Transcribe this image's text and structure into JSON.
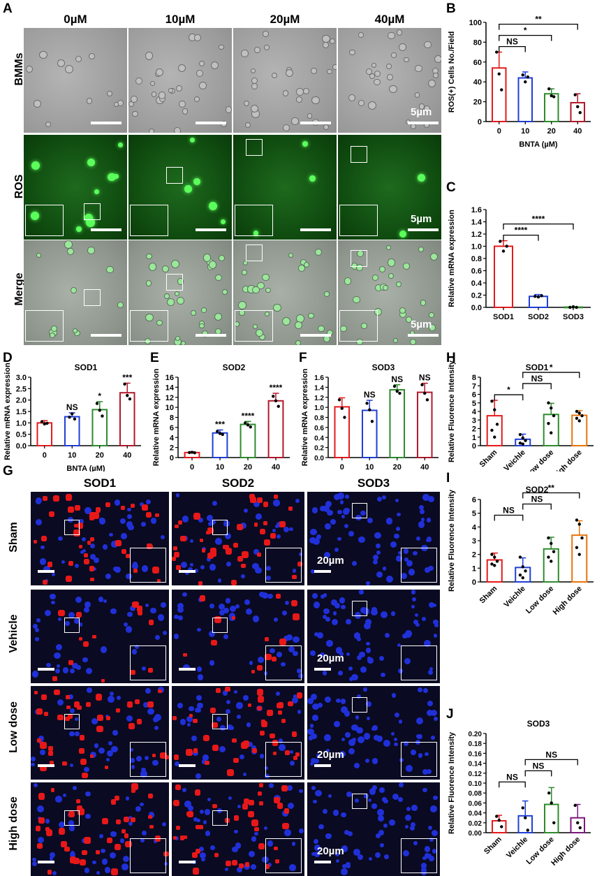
{
  "panel_labels": {
    "A": "A",
    "B": "B",
    "C": "C",
    "D": "D",
    "E": "E",
    "F": "F",
    "G": "G",
    "H": "H",
    "I": "I",
    "J": "J"
  },
  "panelA": {
    "columns": [
      "0µM",
      "10µM",
      "20µM",
      "40µM"
    ],
    "rows": [
      "BMMs",
      "ROS",
      "Merge"
    ],
    "scale_label": "5µm"
  },
  "panelG": {
    "columns": [
      "SOD1",
      "SOD2",
      "SOD3"
    ],
    "rows": [
      "Sham",
      "Vehicle",
      "Low dose",
      "High dose"
    ],
    "scale_label": "20µm"
  },
  "chart_data": [
    {
      "id": "B",
      "type": "bar",
      "title": "",
      "xlabel": "BNTA (µM)",
      "ylabel": "ROS(+) Cells No./Field",
      "categories": [
        "0",
        "10",
        "20",
        "40"
      ],
      "values": [
        54,
        44,
        28,
        19
      ],
      "errors": [
        16,
        6,
        5,
        9
      ],
      "points": [
        [
          70,
          48,
          32
        ],
        [
          47,
          40,
          45
        ],
        [
          33,
          26,
          25
        ],
        [
          27,
          15,
          9
        ]
      ],
      "colors": [
        "#e41a1c",
        "#1f3fd6",
        "#2e8b2e",
        "#b2182b"
      ],
      "ylim": [
        0,
        100
      ],
      "yticks": [
        "0",
        "20",
        "40",
        "60",
        "80",
        "100"
      ],
      "yticks_values": [
        0,
        20,
        40,
        60,
        80,
        100
      ],
      "annotations": [
        {
          "from": 0,
          "to": 1,
          "label": "NS"
        },
        {
          "from": 0,
          "to": 2,
          "label": "*"
        },
        {
          "from": 0,
          "to": 3,
          "label": "**"
        }
      ]
    },
    {
      "id": "C",
      "type": "bar",
      "title": "",
      "xlabel": "",
      "ylabel": "Relative mRNA expression",
      "categories": [
        "SOD1",
        "SOD2",
        "SOD3"
      ],
      "values": [
        1.0,
        0.18,
        0.005
      ],
      "errors": [
        0.09,
        0.03,
        0.005
      ],
      "points": [
        [
          1.08,
          0.92,
          1.0
        ],
        [
          0.18,
          0.17,
          0.19
        ],
        [
          0.0,
          0.01,
          0.0
        ]
      ],
      "colors": [
        "#e41a1c",
        "#1f3fd6",
        "#2e8b2e"
      ],
      "ylim": [
        0,
        1.6
      ],
      "yticks": [
        "0.0",
        "0.2",
        "0.4",
        "0.6",
        "0.8",
        "1.0",
        "1.2",
        "1.4",
        "1.6"
      ],
      "yticks_values": [
        0,
        0.2,
        0.4,
        0.6,
        0.8,
        1.0,
        1.2,
        1.4,
        1.6
      ],
      "annotations": [
        {
          "from": 0,
          "to": 1,
          "label": "****"
        },
        {
          "from": 0,
          "to": 2,
          "label": "****"
        }
      ]
    },
    {
      "id": "D",
      "type": "bar",
      "title": "SOD1",
      "xlabel": "BNTA (µM)",
      "ylabel": "Relative mRNA expression",
      "categories": [
        "0",
        "10",
        "20",
        "40"
      ],
      "values": [
        1.0,
        1.27,
        1.58,
        2.32
      ],
      "errors": [
        0.1,
        0.17,
        0.35,
        0.42
      ],
      "points": [
        [
          1.05,
          0.95,
          0.98
        ],
        [
          1.25,
          1.4,
          1.17
        ],
        [
          1.85,
          1.55,
          1.3
        ],
        [
          2.7,
          2.2,
          2.05
        ]
      ],
      "colors": [
        "#e41a1c",
        "#1f3fd6",
        "#2e8b2e",
        "#b2182b"
      ],
      "ylim": [
        0,
        3.0
      ],
      "yticks": [
        "0.0",
        "0.5",
        "1.0",
        "1.5",
        "2.0",
        "2.5",
        "3.0"
      ],
      "yticks_values": [
        0,
        0.5,
        1.0,
        1.5,
        2.0,
        2.5,
        3.0
      ],
      "bar_labels": [
        "",
        "NS",
        "*",
        "***"
      ]
    },
    {
      "id": "E",
      "type": "bar",
      "title": "SOD2",
      "xlabel": "BNTA (µM)",
      "ylabel": "Relative mRNA expression",
      "categories": [
        "0",
        "10",
        "20",
        "40"
      ],
      "values": [
        1.0,
        4.9,
        6.6,
        11.3
      ],
      "errors": [
        0.15,
        0.6,
        0.6,
        1.5
      ],
      "points": [
        [
          1.0,
          1.05,
          0.95
        ],
        [
          5.2,
          4.8,
          4.6
        ],
        [
          6.9,
          6.5,
          6.1
        ],
        [
          12.2,
          11.3,
          10.2
        ]
      ],
      "colors": [
        "#e41a1c",
        "#1f3fd6",
        "#2e8b2e",
        "#b2182b"
      ],
      "ylim": [
        0,
        16
      ],
      "yticks": [
        "0",
        "2",
        "4",
        "6",
        "8",
        "10",
        "12",
        "14",
        "16"
      ],
      "yticks_values": [
        0,
        2,
        4,
        6,
        8,
        10,
        12,
        14,
        16
      ],
      "bar_labels": [
        "",
        "***",
        "****",
        "****"
      ]
    },
    {
      "id": "F",
      "type": "bar",
      "title": "SOD3",
      "xlabel": "BNTA (µM)",
      "ylabel": "Relative mRNA expression",
      "categories": [
        "0",
        "10",
        "20",
        "40"
      ],
      "values": [
        1.01,
        0.94,
        1.35,
        1.3
      ],
      "errors": [
        0.18,
        0.2,
        0.1,
        0.18
      ],
      "points": [
        [
          1.15,
          0.98,
          0.8
        ],
        [
          1.08,
          0.95,
          0.72
        ],
        [
          1.42,
          1.32,
          1.28
        ],
        [
          1.45,
          1.28,
          1.15
        ]
      ],
      "colors": [
        "#e41a1c",
        "#1f3fd6",
        "#2e8b2e",
        "#b2182b"
      ],
      "ylim": [
        0,
        1.6
      ],
      "yticks": [
        "0.0",
        "0.2",
        "0.4",
        "0.6",
        "0.8",
        "1.0",
        "1.2",
        "1.4",
        "1.6"
      ],
      "yticks_values": [
        0,
        0.2,
        0.4,
        0.6,
        0.8,
        1.0,
        1.2,
        1.4,
        1.6
      ],
      "bar_labels": [
        "",
        "NS",
        "NS",
        "NS"
      ]
    },
    {
      "id": "H",
      "type": "bar",
      "title": "SOD1",
      "xlabel": "",
      "ylabel": "Relative Fluorence Intensity",
      "categories": [
        "Sham",
        "Veichle",
        "Low dose",
        "High dose"
      ],
      "values": [
        3.5,
        0.75,
        3.65,
        3.55
      ],
      "errors": [
        1.8,
        0.6,
        1.3,
        0.55
      ],
      "points": [
        [
          5.2,
          4.2,
          2.5,
          1.8,
          1.0
        ],
        [
          1.3,
          0.9,
          0.6,
          0.3,
          0.2
        ],
        [
          5.0,
          4.4,
          3.5,
          2.6,
          1.5
        ],
        [
          4.0,
          3.8,
          3.5,
          3.2,
          2.9
        ]
      ],
      "colors": [
        "#e41a1c",
        "#1f3fd6",
        "#2e8b2e",
        "#e8740c"
      ],
      "ylim": [
        0,
        8
      ],
      "yticks": [
        "0",
        "1",
        "2",
        "3",
        "4",
        "5",
        "6",
        "7",
        "8"
      ],
      "yticks_values": [
        0,
        1,
        2,
        3,
        4,
        5,
        6,
        7,
        8
      ],
      "annotations": [
        {
          "from": 0,
          "to": 1,
          "label": "*"
        },
        {
          "from": 1,
          "to": 2,
          "label": "NS"
        },
        {
          "from": 1,
          "to": 3,
          "label": "*"
        }
      ]
    },
    {
      "id": "I",
      "type": "bar",
      "title": "SOD2",
      "xlabel": "",
      "ylabel": "Relative Fluorence Intensity",
      "categories": [
        "Sham",
        "Veichle",
        "Low dose",
        "High dose"
      ],
      "values": [
        1.6,
        1.05,
        2.4,
        3.4
      ],
      "errors": [
        0.5,
        0.7,
        0.85,
        1.05
      ],
      "points": [
        [
          2.0,
          1.8,
          1.5,
          1.3,
          1.2
        ],
        [
          1.8,
          1.1,
          0.8,
          0.5,
          0.3
        ],
        [
          3.2,
          2.8,
          2.2,
          1.8,
          1.5
        ],
        [
          4.5,
          4.2,
          3.2,
          2.5,
          2.0
        ]
      ],
      "colors": [
        "#e41a1c",
        "#1f3fd6",
        "#2e8b2e",
        "#e8740c"
      ],
      "ylim": [
        0,
        6
      ],
      "yticks": [
        "0",
        "1",
        "2",
        "3",
        "4",
        "5",
        "6"
      ],
      "yticks_values": [
        0,
        1,
        2,
        3,
        4,
        5,
        6
      ],
      "annotations": [
        {
          "from": 0,
          "to": 1,
          "label": "NS"
        },
        {
          "from": 1,
          "to": 2,
          "label": "NS"
        },
        {
          "from": 1,
          "to": 3,
          "label": "**"
        }
      ]
    },
    {
      "id": "J",
      "type": "bar",
      "title": "SOD3",
      "xlabel": "",
      "ylabel": "Relative Fluorence Intensity",
      "categories": [
        "Sham",
        "Veichle",
        "Low dose",
        "High dose"
      ],
      "values": [
        0.024,
        0.034,
        0.057,
        0.03
      ],
      "errors": [
        0.011,
        0.03,
        0.034,
        0.027
      ],
      "points": [
        [
          0.033,
          0.025,
          0.012
        ],
        [
          0.05,
          0.03,
          0.005
        ],
        [
          0.08,
          0.06,
          0.02
        ],
        [
          0.055,
          0.02,
          0.01
        ]
      ],
      "colors": [
        "#e41a1c",
        "#1f3fd6",
        "#2e8b2e",
        "#7b1a7b"
      ],
      "ylim": [
        0,
        0.2
      ],
      "yticks": [
        "0.00",
        "0.02",
        "0.04",
        "0.06",
        "0.08",
        "0.10",
        "0.12",
        "0.14",
        "0.16",
        "0.18",
        "0.20"
      ],
      "yticks_values": [
        0,
        0.02,
        0.04,
        0.06,
        0.08,
        0.1,
        0.12,
        0.14,
        0.16,
        0.18,
        0.2
      ],
      "annotations": [
        {
          "from": 0,
          "to": 1,
          "label": "NS"
        },
        {
          "from": 1,
          "to": 2,
          "label": "NS"
        },
        {
          "from": 1,
          "to": 3,
          "label": "NS"
        }
      ]
    }
  ]
}
